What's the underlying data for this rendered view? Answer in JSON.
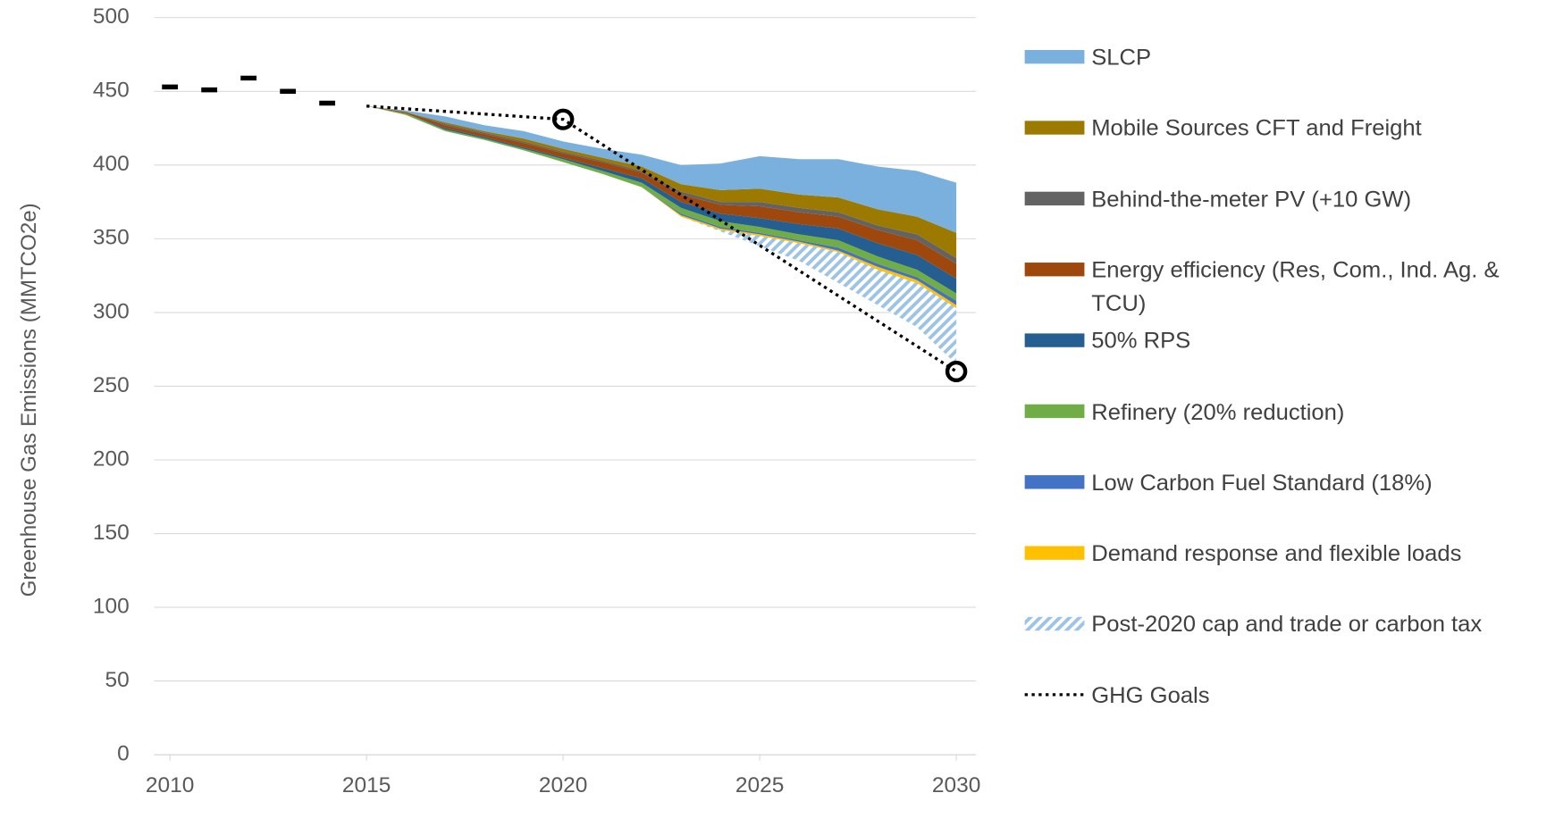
{
  "chart_data": {
    "type": "stacked-area",
    "y_label": "Greenhouse Gas Emissions (MMTCO2e)",
    "x": [
      2015,
      2016,
      2017,
      2018,
      2019,
      2020,
      2021,
      2022,
      2023,
      2024,
      2025,
      2026,
      2027,
      2028,
      2029,
      2030
    ],
    "xlim": [
      2009.6,
      2030.5
    ],
    "xticks": [
      2010,
      2015,
      2020,
      2025,
      2030
    ],
    "ylim": [
      0,
      500
    ],
    "yticks": [
      0,
      50,
      100,
      150,
      200,
      250,
      300,
      350,
      400,
      450,
      500
    ],
    "grid": true,
    "series": [
      {
        "color": "none",
        "values": [
          440,
          434,
          423,
          417,
          410,
          402,
          394,
          385,
          365,
          355,
          345,
          335,
          320,
          305,
          290,
          265
        ]
      },
      {
        "name": "Post-2020 cap and trade or carbon tax",
        "color": "#9dc3e6",
        "pattern": "hatch",
        "values": [
          0,
          0,
          0,
          0,
          0,
          0,
          0,
          0,
          0,
          1,
          7,
          12,
          21,
          24,
          30,
          38
        ]
      },
      {
        "name": "Demand response and flexible loads",
        "color": "#ffc000",
        "values": [
          0,
          0,
          0,
          0,
          0,
          0,
          0,
          0,
          1,
          1,
          1,
          1,
          1,
          2,
          2,
          2
        ]
      },
      {
        "name": "Low Carbon Fuel Standard (18%)",
        "color": "#4472c4",
        "values": [
          0,
          0,
          0,
          0,
          0,
          0,
          0,
          0,
          1,
          1,
          1,
          1,
          2,
          2,
          2,
          3
        ]
      },
      {
        "name": "Refinery (20%  reduction)",
        "color": "#70ad47",
        "values": [
          0,
          1,
          1,
          1,
          1,
          2,
          2,
          3,
          4,
          4,
          4,
          4,
          5,
          5,
          5,
          5
        ]
      },
      {
        "name": "50% RPS",
        "color": "#255e91",
        "values": [
          0,
          0,
          1,
          1,
          1,
          1,
          2,
          3,
          4,
          5,
          6,
          7,
          8,
          9,
          10,
          10
        ]
      },
      {
        "name": "Energy efficiency (Res, Com., Ind. Ag. & TCU)",
        "color": "#9e480e",
        "values": [
          0,
          1,
          2,
          2,
          3,
          3,
          4,
          4,
          5,
          6,
          8,
          8,
          8,
          9,
          10,
          10
        ]
      },
      {
        "name": "Behind-the-meter PV (+10 GW)",
        "color": "#636363",
        "values": [
          0,
          0,
          1,
          1,
          1,
          1,
          1,
          1,
          2,
          2,
          3,
          3,
          3,
          3,
          4,
          4
        ]
      },
      {
        "name": "Mobile Sources CFT and Freight",
        "color": "#9c7a00",
        "values": [
          0,
          0,
          1,
          1,
          2,
          2,
          2,
          3,
          5,
          8,
          9,
          9,
          10,
          11,
          12,
          17
        ]
      },
      {
        "name": "SLCP",
        "color": "#7ab0de",
        "values": [
          0,
          1,
          4,
          4,
          5,
          5,
          6,
          8,
          13,
          18,
          22,
          24,
          26,
          29,
          31,
          34
        ]
      }
    ],
    "goal_line": {
      "name": "GHG Goals",
      "color": "#000000",
      "x": [
        2015,
        2020,
        2030
      ],
      "values": [
        440,
        431,
        260
      ]
    },
    "history": {
      "color": "#000000",
      "x": [
        2010,
        2011,
        2012,
        2013,
        2014
      ],
      "values": [
        453,
        451,
        459,
        450,
        442
      ]
    }
  }
}
